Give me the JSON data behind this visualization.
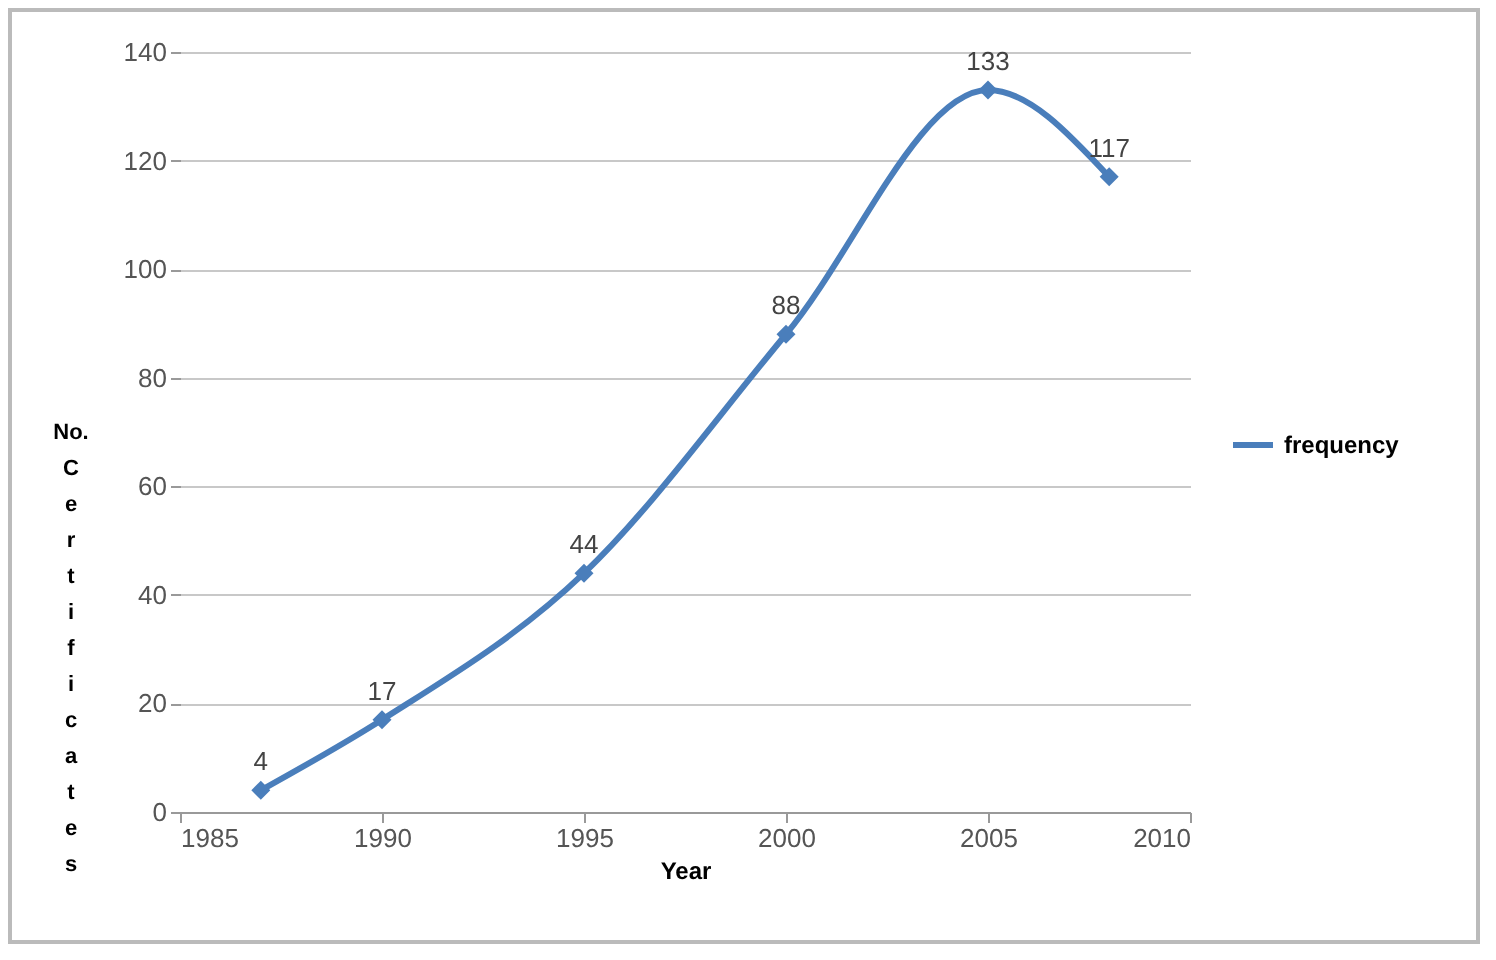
{
  "chart_data": {
    "type": "line",
    "xlabel": "Year",
    "ylabel": "No. Certificates",
    "x": [
      1987,
      1990,
      1995,
      2000,
      2005,
      2008
    ],
    "series": [
      {
        "name": "frequency",
        "color": "#4a7ebb",
        "values": [
          4,
          17,
          44,
          88,
          133,
          117
        ]
      }
    ],
    "xlim": [
      1985,
      2010
    ],
    "xticks": [
      1985,
      1990,
      1995,
      2000,
      2005,
      2010
    ],
    "ylim": [
      0,
      140
    ],
    "yticks": [
      0,
      20,
      40,
      60,
      80,
      100,
      120,
      140
    ],
    "grid": "y",
    "legend": "right",
    "marker": "diamond",
    "line_style": "solid",
    "data_labels": true
  }
}
